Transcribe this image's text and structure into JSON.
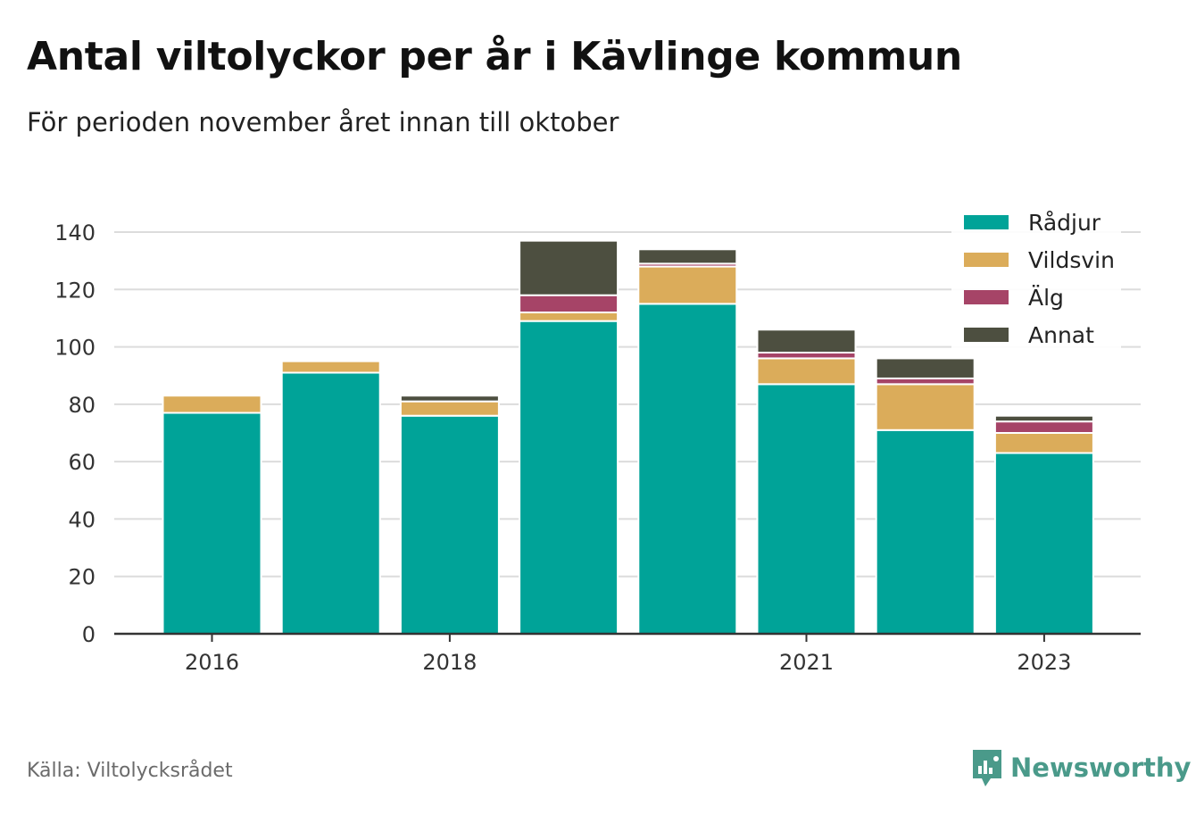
{
  "title": "Antal viltolyckor per år i Kävlinge kommun",
  "subtitle": "För perioden november året innan till oktober",
  "source": "Källa: Viltolycksrådet",
  "brand": "Newsworthy",
  "colors": {
    "radjur": "#00a398",
    "vildsvin": "#dbac5a",
    "alg": "#a64467",
    "annat": "#4d4f40",
    "brand": "#4a9a8a"
  },
  "chart_data": {
    "type": "bar",
    "stacked": true,
    "categories": [
      "2016",
      "2017",
      "2018",
      "2019",
      "2020",
      "2021",
      "2022",
      "2023"
    ],
    "x_tick_labels": [
      "2016",
      "",
      "2018",
      "",
      "",
      "2021",
      "",
      "2023"
    ],
    "series": [
      {
        "name": "Rådjur",
        "color": "#00a398",
        "values": [
          77,
          91,
          76,
          109,
          115,
          87,
          71,
          63
        ]
      },
      {
        "name": "Vildsvin",
        "color": "#dbac5a",
        "values": [
          6,
          4,
          5,
          3,
          13,
          9,
          16,
          7
        ]
      },
      {
        "name": "Älg",
        "color": "#a64467",
        "values": [
          0,
          0,
          0,
          6,
          1,
          2,
          2,
          4
        ]
      },
      {
        "name": "Annat",
        "color": "#4d4f40",
        "values": [
          0,
          0,
          2,
          19,
          5,
          8,
          7,
          2
        ]
      }
    ],
    "ylim": [
      0,
      140
    ],
    "yticks": [
      0,
      20,
      40,
      60,
      80,
      100,
      120,
      140
    ],
    "grid": true,
    "legend_position": "top-right"
  }
}
